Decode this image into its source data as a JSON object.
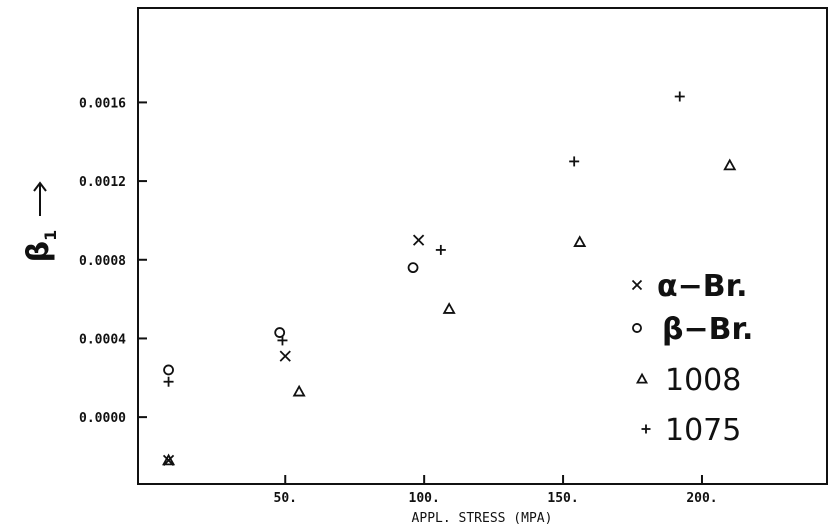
{
  "chart_data": {
    "type": "scatter",
    "xlabel": "APPL. STRESS (MPA)",
    "ylabel": "β",
    "ylabel_subscript": "1",
    "xlim": [
      -3,
      245
    ],
    "ylim": [
      -0.00034,
      0.00208
    ],
    "x_ticks": [
      50,
      100,
      150,
      200
    ],
    "x_tick_labels": [
      "50.",
      "100.",
      "150.",
      "200."
    ],
    "y_ticks": [
      0.0,
      0.0004,
      0.0008,
      0.0012,
      0.0016
    ],
    "y_tick_labels": [
      "0.0000",
      "0.0004",
      "0.0008",
      "0.0012",
      "0.0016"
    ],
    "grid": false,
    "legend_position": "bottom-right",
    "series": [
      {
        "name": "α−Br.",
        "marker": "x",
        "x": [
          8,
          50,
          98
        ],
        "y": [
          -0.00022,
          0.00031,
          0.0009
        ]
      },
      {
        "name": "β−Br.",
        "marker": "circle",
        "x": [
          8,
          48,
          96
        ],
        "y": [
          0.00024,
          0.00043,
          0.00076
        ]
      },
      {
        "name": "1008",
        "marker": "triangle",
        "x": [
          8,
          55,
          109,
          156,
          210
        ],
        "y": [
          -0.00022,
          0.00013,
          0.00055,
          0.00089,
          0.00128
        ]
      },
      {
        "name": "1075",
        "marker": "plus",
        "x": [
          8,
          49,
          106,
          154,
          192
        ],
        "y": [
          0.00018,
          0.00039,
          0.00085,
          0.0013,
          0.00163
        ]
      }
    ]
  }
}
